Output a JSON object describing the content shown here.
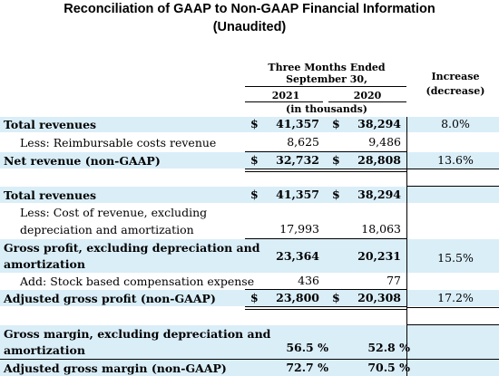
{
  "title": "Reconciliation of GAAP to Non-GAAP Financial Information",
  "subtitle": "(Unaudited)",
  "header": {
    "period": "Three Months Ended",
    "period_date": "September 30,",
    "year1": "2021",
    "year2": "2020",
    "units": "(in thousands)",
    "change": "Increase",
    "change2": "(decrease)"
  },
  "currency": "$",
  "rows": [
    {
      "label": "Total revenues",
      "v2021": "41,357",
      "v2020": "38,294",
      "change": "8.0%"
    },
    {
      "label": "Less: Reimbursable costs revenue",
      "v2021": "8,625",
      "v2020": "9,486",
      "change": ""
    },
    {
      "label": "Net revenue (non-GAAP)",
      "v2021": "32,732",
      "v2020": "28,808",
      "change": "13.6%"
    },
    {
      "label": "Total revenues",
      "v2021": "41,357",
      "v2020": "38,294",
      "change": ""
    },
    {
      "label": "Less: Cost of revenue, excluding",
      "label2": "depreciation and amortization",
      "v2021": "17,993",
      "v2020": "18,063",
      "change": ""
    },
    {
      "label": "Gross profit, excluding depreciation and",
      "label2": "amortization",
      "v2021": "23,364",
      "v2020": "20,231",
      "change": "15.5%"
    },
    {
      "label": "Add: Stock based compensation expense",
      "v2021": "436",
      "v2020": "77",
      "change": ""
    },
    {
      "label": "Adjusted gross profit (non-GAAP)",
      "v2021": "23,800",
      "v2020": "20,308",
      "change": "17.2%"
    },
    {
      "label": "Gross margin, excluding depreciation and",
      "label2": "amortization",
      "v2021": "56.5 %",
      "v2020": "52.8 %",
      "change": ""
    },
    {
      "label": "Adjusted gross margin (non-GAAP)",
      "v2021": "72.7 %",
      "v2020": "70.5 %",
      "change": ""
    }
  ]
}
